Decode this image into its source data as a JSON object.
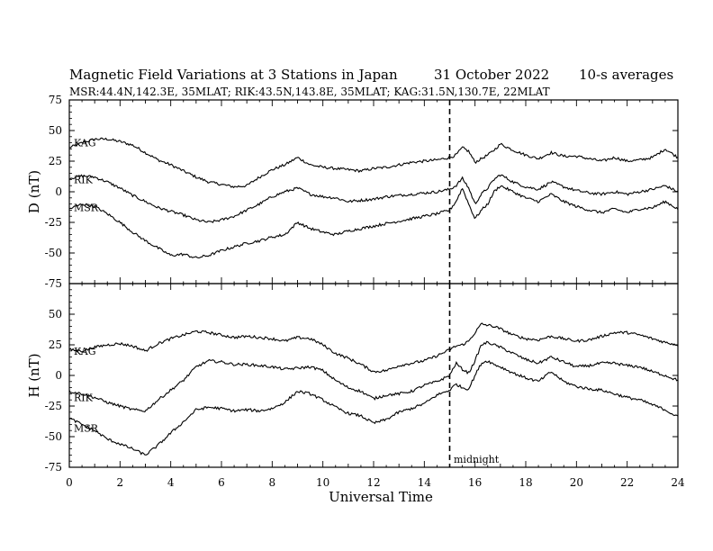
{
  "title": {
    "main": "Magnetic Field Variations at 3 Stations in Japan",
    "date": "31 October 2022",
    "note": "10-s averages"
  },
  "subtitle": "MSR:44.4N,142.3E, 35MLAT;  RIK:43.5N,143.8E, 35MLAT;  KAG:31.5N,130.7E, 22MLAT",
  "annotation": "midnight",
  "colors": {
    "line": "#000000",
    "background": "#ffffff"
  },
  "chart_data": [
    {
      "type": "line",
      "panel": "top",
      "xlabel": "Universal Time",
      "ylabel": "D (nT)",
      "xlim": [
        0,
        24
      ],
      "ylim": [
        -75,
        75
      ],
      "x_ticks": [
        0,
        2,
        4,
        6,
        8,
        10,
        12,
        14,
        16,
        18,
        20,
        22,
        24
      ],
      "y_ticks": [
        -75,
        -50,
        -25,
        0,
        25,
        50,
        75
      ],
      "vline": {
        "x": 15,
        "style": "dashed",
        "label": "midnight"
      },
      "series": [
        {
          "name": "KAG",
          "x": [
            0,
            0.5,
            1,
            1.5,
            2,
            2.5,
            3,
            3.5,
            4,
            4.5,
            5,
            5.5,
            6,
            6.5,
            7,
            7.5,
            8,
            8.5,
            9,
            9.5,
            10,
            10.5,
            11,
            11.5,
            12,
            12.5,
            13,
            13.5,
            14,
            14.5,
            15,
            15.25,
            15.5,
            15.75,
            16,
            16.25,
            16.5,
            16.75,
            17,
            17.5,
            18,
            18.5,
            19,
            19.5,
            20,
            20.5,
            21,
            21.5,
            22,
            22.5,
            23,
            23.5,
            24
          ],
          "y": [
            36,
            40,
            43,
            43,
            41,
            38,
            32,
            26,
            22,
            17,
            12,
            8,
            6,
            4,
            5,
            12,
            18,
            22,
            28,
            22,
            20,
            19,
            18,
            17,
            19,
            20,
            22,
            24,
            25,
            26,
            28,
            30,
            36,
            33,
            24,
            27,
            30,
            34,
            39,
            34,
            30,
            27,
            32,
            29,
            29,
            27,
            25,
            28,
            25,
            26,
            28,
            35,
            28
          ]
        },
        {
          "name": "RIK",
          "x": [
            0,
            0.5,
            1,
            1.5,
            2,
            2.5,
            3,
            3.5,
            4,
            4.5,
            5,
            5.5,
            6,
            6.5,
            7,
            7.5,
            8,
            8.5,
            9,
            9.5,
            10,
            10.5,
            11,
            11.5,
            12,
            12.5,
            13,
            13.5,
            14,
            14.5,
            15,
            15.25,
            15.5,
            15.75,
            16,
            16.25,
            16.5,
            16.75,
            17,
            17.5,
            18,
            18.5,
            19,
            19.5,
            20,
            20.5,
            21,
            21.5,
            22,
            22.5,
            23,
            23.5,
            24
          ],
          "y": [
            11,
            13,
            12,
            8,
            3,
            -3,
            -8,
            -13,
            -16,
            -19,
            -23,
            -25,
            -23,
            -20,
            -15,
            -10,
            -4,
            0,
            3,
            -2,
            -4,
            -5,
            -8,
            -7,
            -6,
            -4,
            -3,
            -2,
            -1,
            0,
            2,
            5,
            11,
            3,
            -10,
            -2,
            3,
            10,
            14,
            8,
            4,
            2,
            8,
            4,
            1,
            -1,
            -2,
            0,
            -2,
            0,
            2,
            5,
            0
          ]
        },
        {
          "name": "MSR",
          "x": [
            0,
            0.5,
            1,
            1.5,
            2,
            2.5,
            3,
            3.5,
            4,
            4.5,
            5,
            5.5,
            6,
            6.5,
            7,
            7.5,
            8,
            8.5,
            9,
            9.5,
            10,
            10.5,
            11,
            11.5,
            12,
            12.5,
            13,
            13.5,
            14,
            14.5,
            15,
            15.25,
            15.5,
            15.75,
            16,
            16.25,
            16.5,
            16.75,
            17,
            17.5,
            18,
            18.5,
            19,
            19.5,
            20,
            20.5,
            21,
            21.5,
            22,
            22.5,
            23,
            23.5,
            24
          ],
          "y": [
            -14,
            -10,
            -12,
            -18,
            -25,
            -33,
            -40,
            -46,
            -52,
            -51,
            -54,
            -52,
            -48,
            -45,
            -42,
            -40,
            -37,
            -35,
            -25,
            -30,
            -33,
            -35,
            -32,
            -30,
            -28,
            -26,
            -24,
            -22,
            -20,
            -18,
            -15,
            -8,
            3,
            -10,
            -22,
            -15,
            -10,
            0,
            5,
            0,
            -5,
            -8,
            -2,
            -8,
            -12,
            -15,
            -17,
            -14,
            -17,
            -14,
            -13,
            -8,
            -14
          ]
        }
      ],
      "legend": "inline labels at left"
    },
    {
      "type": "line",
      "panel": "bottom",
      "xlabel": "Universal Time",
      "ylabel": "H (nT)",
      "xlim": [
        0,
        24
      ],
      "ylim": [
        -75,
        75
      ],
      "x_ticks": [
        0,
        2,
        4,
        6,
        8,
        10,
        12,
        14,
        16,
        18,
        20,
        22,
        24
      ],
      "y_ticks": [
        -75,
        -50,
        -25,
        0,
        25,
        50,
        75
      ],
      "vline": {
        "x": 15,
        "style": "dashed",
        "label": "midnight"
      },
      "series": [
        {
          "name": "KAG",
          "x": [
            0,
            0.5,
            1,
            1.5,
            2,
            2.5,
            3,
            3.5,
            4,
            4.5,
            5,
            5.5,
            6,
            6.5,
            7,
            7.5,
            8,
            8.5,
            9,
            9.5,
            10,
            10.5,
            11,
            11.5,
            12,
            12.5,
            13,
            13.5,
            14,
            14.5,
            15,
            15.25,
            15.5,
            15.75,
            16,
            16.25,
            16.5,
            16.75,
            17,
            17.5,
            18,
            18.5,
            19,
            19.5,
            20,
            20.5,
            21,
            21.5,
            22,
            22.5,
            23,
            23.5,
            24
          ],
          "y": [
            21,
            20,
            23,
            25,
            26,
            24,
            20,
            26,
            30,
            33,
            36,
            35,
            33,
            31,
            32,
            31,
            30,
            28,
            31,
            30,
            25,
            18,
            14,
            9,
            3,
            4,
            8,
            10,
            12,
            16,
            21,
            24,
            25,
            28,
            35,
            42,
            41,
            40,
            38,
            33,
            30,
            29,
            32,
            30,
            28,
            29,
            32,
            35,
            35,
            33,
            30,
            27,
            25
          ]
        },
        {
          "name": "RIK",
          "x": [
            0,
            0.5,
            1,
            1.5,
            2,
            2.5,
            3,
            3.5,
            4,
            4.5,
            5,
            5.5,
            6,
            6.5,
            7,
            7.5,
            8,
            8.5,
            9,
            9.5,
            10,
            10.5,
            11,
            11.5,
            12,
            12.5,
            13,
            13.5,
            14,
            14.5,
            15,
            15.25,
            15.5,
            15.75,
            16,
            16.25,
            16.5,
            16.75,
            17,
            17.5,
            18,
            18.5,
            19,
            19.5,
            20,
            20.5,
            21,
            21.5,
            22,
            22.5,
            23,
            23.5,
            24
          ],
          "y": [
            -13,
            -15,
            -18,
            -22,
            -25,
            -28,
            -29,
            -20,
            -12,
            -4,
            7,
            12,
            11,
            9,
            9,
            8,
            7,
            5,
            6,
            7,
            4,
            -4,
            -10,
            -13,
            -19,
            -16,
            -15,
            -13,
            -8,
            -5,
            0,
            10,
            5,
            2,
            12,
            25,
            27,
            25,
            23,
            18,
            13,
            10,
            15,
            11,
            7,
            8,
            10,
            10,
            8,
            7,
            3,
            0,
            -4
          ]
        },
        {
          "name": "MSR",
          "x": [
            0,
            0.5,
            1,
            1.5,
            2,
            2.5,
            3,
            3.5,
            4,
            4.5,
            5,
            5.5,
            6,
            6.5,
            7,
            7.5,
            8,
            8.5,
            9,
            9.5,
            10,
            10.5,
            11,
            11.5,
            12,
            12.5,
            13,
            13.5,
            14,
            14.5,
            15,
            15.25,
            15.5,
            15.75,
            16,
            16.25,
            16.5,
            16.75,
            17,
            17.5,
            18,
            18.5,
            19,
            19.5,
            20,
            20.5,
            21,
            21.5,
            22,
            22.5,
            23,
            23.5,
            24
          ],
          "y": [
            -35,
            -40,
            -45,
            -52,
            -56,
            -60,
            -65,
            -57,
            -47,
            -38,
            -28,
            -26,
            -27,
            -29,
            -28,
            -29,
            -27,
            -22,
            -13,
            -15,
            -20,
            -26,
            -31,
            -33,
            -39,
            -36,
            -30,
            -27,
            -23,
            -16,
            -12,
            -7,
            -10,
            -11,
            0,
            10,
            12,
            9,
            7,
            2,
            -2,
            -5,
            3,
            -5,
            -9,
            -11,
            -12,
            -15,
            -18,
            -20,
            -24,
            -28,
            -34
          ]
        }
      ],
      "legend": "inline labels at left"
    }
  ]
}
